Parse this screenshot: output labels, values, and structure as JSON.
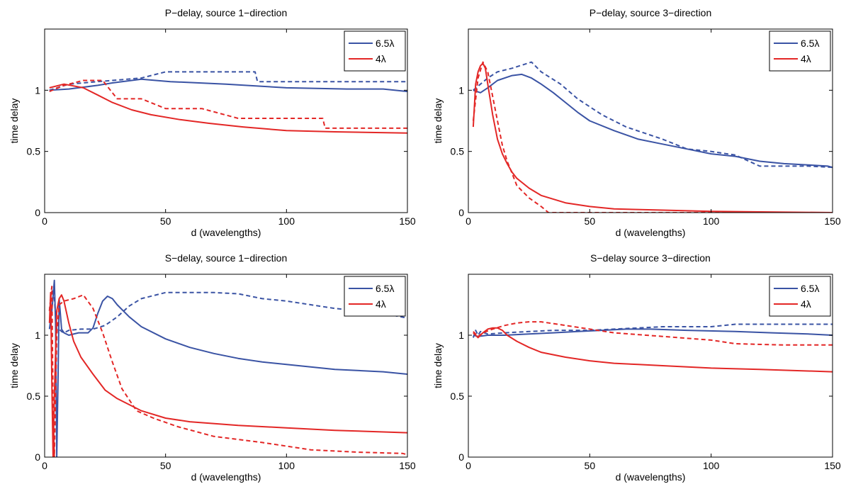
{
  "chart_data": [
    {
      "type": "line",
      "title": "P−delay, source 1−direction",
      "xlabel": "d (wavelengths)",
      "ylabel": "time delay",
      "xlim": [
        0,
        150
      ],
      "ylim": [
        0,
        1.5
      ],
      "xticks": [
        "0",
        "50",
        "100",
        "150"
      ],
      "yticks": [
        "0",
        "0.5",
        "1"
      ],
      "legend": {
        "position": "top-right",
        "entries": [
          "6.5λ",
          "4λ"
        ]
      },
      "series": [
        {
          "name": "6.5λ",
          "color": "#3a53a4",
          "style": "solid",
          "x": [
            2,
            10,
            22,
            28,
            40,
            52,
            75,
            100,
            125,
            140,
            150
          ],
          "y": [
            1.0,
            1.01,
            1.04,
            1.06,
            1.09,
            1.07,
            1.05,
            1.02,
            1.01,
            1.01,
            0.99
          ]
        },
        {
          "name": "6.5λ",
          "color": "#3a53a4",
          "style": "dashed",
          "x": [
            2,
            10,
            22,
            40,
            50,
            70,
            87,
            88,
            100,
            130,
            150
          ],
          "y": [
            1.0,
            1.05,
            1.07,
            1.1,
            1.15,
            1.15,
            1.15,
            1.07,
            1.07,
            1.07,
            1.07
          ]
        },
        {
          "name": "4λ",
          "color": "#e32726",
          "style": "solid",
          "x": [
            2,
            8,
            16,
            22,
            28,
            36,
            44,
            56,
            68,
            82,
            100,
            120,
            150
          ],
          "y": [
            1.02,
            1.05,
            1.02,
            0.96,
            0.9,
            0.84,
            0.8,
            0.76,
            0.73,
            0.7,
            0.67,
            0.66,
            0.65
          ]
        },
        {
          "name": "4λ",
          "color": "#e32726",
          "style": "dashed",
          "x": [
            2,
            8,
            16,
            24,
            30,
            40,
            50,
            65,
            80,
            100,
            115,
            116,
            150
          ],
          "y": [
            0.99,
            1.04,
            1.08,
            1.08,
            0.93,
            0.93,
            0.85,
            0.85,
            0.77,
            0.77,
            0.77,
            0.69,
            0.69
          ]
        }
      ]
    },
    {
      "type": "line",
      "title": "P−delay, source 3−direction",
      "xlabel": "d (wavelengths)",
      "ylabel": "time delay",
      "xlim": [
        0,
        150
      ],
      "ylim": [
        0,
        1.5
      ],
      "xticks": [
        "0",
        "50",
        "100",
        "150"
      ],
      "yticks": [
        "0",
        "0.5",
        "1"
      ],
      "legend": {
        "position": "top-right",
        "entries": [
          "6.5λ",
          "4λ"
        ]
      },
      "series": [
        {
          "name": "6.5λ",
          "color": "#3a53a4",
          "style": "solid",
          "x": [
            2,
            5,
            8,
            12,
            18,
            22,
            26,
            30,
            35,
            40,
            45,
            50,
            60,
            70,
            80,
            90,
            100,
            110,
            120,
            130,
            140,
            148,
            150
          ],
          "y": [
            1.0,
            0.98,
            1.02,
            1.08,
            1.12,
            1.13,
            1.1,
            1.05,
            0.98,
            0.9,
            0.82,
            0.75,
            0.67,
            0.6,
            0.56,
            0.52,
            0.48,
            0.46,
            0.42,
            0.4,
            0.39,
            0.38,
            0.37
          ]
        },
        {
          "name": "6.5λ",
          "color": "#3a53a4",
          "style": "dashed",
          "x": [
            2,
            5,
            8,
            12,
            18,
            26,
            30,
            38,
            45,
            55,
            65,
            80,
            90,
            100,
            110,
            120,
            130,
            140,
            150
          ],
          "y": [
            1.0,
            1.05,
            1.1,
            1.15,
            1.18,
            1.23,
            1.15,
            1.05,
            0.93,
            0.8,
            0.7,
            0.6,
            0.52,
            0.5,
            0.47,
            0.38,
            0.38,
            0.38,
            0.37
          ]
        },
        {
          "name": "4λ",
          "color": "#e32726",
          "style": "solid",
          "x": [
            2,
            3,
            4,
            5,
            6,
            7,
            8,
            10,
            12,
            14,
            16,
            18,
            20,
            25,
            30,
            40,
            50,
            60,
            80,
            100,
            150
          ],
          "y": [
            0.7,
            1.05,
            1.15,
            1.2,
            1.22,
            1.18,
            1.05,
            0.8,
            0.6,
            0.48,
            0.4,
            0.33,
            0.28,
            0.2,
            0.14,
            0.08,
            0.05,
            0.03,
            0.02,
            0.01,
            0.0
          ]
        },
        {
          "name": "4λ",
          "color": "#e32726",
          "style": "dashed",
          "x": [
            2,
            4,
            6,
            8,
            10,
            12,
            14,
            16,
            18,
            20,
            25,
            30,
            33,
            40,
            60,
            100,
            150
          ],
          "y": [
            0.75,
            1.1,
            1.23,
            1.15,
            0.95,
            0.75,
            0.55,
            0.42,
            0.32,
            0.22,
            0.12,
            0.05,
            0.0,
            0.0,
            0.0,
            0.0,
            0.0
          ]
        }
      ]
    },
    {
      "type": "line",
      "title": "S−delay, source 1−direction",
      "xlabel": "d (wavelengths)",
      "ylabel": "time delay",
      "xlim": [
        0,
        150
      ],
      "ylim": [
        0,
        1.5
      ],
      "xticks": [
        "0",
        "50",
        "100",
        "150"
      ],
      "yticks": [
        "0",
        "0.5",
        "1"
      ],
      "legend": {
        "position": "top-right",
        "entries": [
          "6.5λ",
          "4λ"
        ]
      },
      "series": [
        {
          "name": "6.5λ",
          "color": "#3a53a4",
          "style": "solid",
          "x": [
            2,
            3,
            4,
            4.5,
            5,
            5.5,
            6,
            7,
            8,
            10,
            14,
            18,
            20,
            22,
            24,
            26,
            28,
            30,
            35,
            40,
            50,
            60,
            70,
            80,
            90,
            100,
            110,
            120,
            130,
            140,
            150
          ],
          "y": [
            1.05,
            1.2,
            1.45,
            1.1,
            0.0,
            0.6,
            1.3,
            1.05,
            1.02,
            1.0,
            1.02,
            1.02,
            1.06,
            1.18,
            1.28,
            1.32,
            1.3,
            1.25,
            1.15,
            1.07,
            0.97,
            0.9,
            0.85,
            0.81,
            0.78,
            0.76,
            0.74,
            0.72,
            0.71,
            0.7,
            0.68
          ]
        },
        {
          "name": "6.5λ",
          "color": "#3a53a4",
          "style": "dashed",
          "x": [
            2,
            3,
            4,
            5,
            6,
            7,
            8,
            10,
            15,
            20,
            25,
            30,
            35,
            40,
            50,
            60,
            70,
            80,
            90,
            100,
            120,
            140,
            150
          ],
          "y": [
            1.2,
            1.4,
            1.3,
            1.05,
            1.05,
            1.03,
            1.02,
            1.04,
            1.05,
            1.05,
            1.08,
            1.15,
            1.24,
            1.3,
            1.35,
            1.35,
            1.35,
            1.34,
            1.3,
            1.28,
            1.22,
            1.18,
            1.14
          ]
        },
        {
          "name": "4λ",
          "color": "#e32726",
          "style": "solid",
          "x": [
            2,
            2.5,
            3,
            3.5,
            4,
            5,
            6,
            7,
            8,
            10,
            12,
            15,
            20,
            25,
            30,
            40,
            50,
            60,
            80,
            100,
            120,
            150
          ],
          "y": [
            1.1,
            1.35,
            0.6,
            0.0,
            0.5,
            1.2,
            1.3,
            1.33,
            1.28,
            1.1,
            0.95,
            0.82,
            0.68,
            0.55,
            0.48,
            0.38,
            0.32,
            0.29,
            0.26,
            0.24,
            0.22,
            0.2
          ]
        },
        {
          "name": "4λ",
          "color": "#e32726",
          "style": "dashed",
          "x": [
            2,
            3,
            3.5,
            4,
            5,
            6,
            8,
            12,
            16,
            20,
            24,
            28,
            32,
            38,
            45,
            55,
            70,
            90,
            110,
            130,
            148,
            150
          ],
          "y": [
            1.2,
            1.4,
            0.4,
            0.0,
            1.0,
            1.25,
            1.28,
            1.3,
            1.33,
            1.22,
            1.02,
            0.78,
            0.56,
            0.38,
            0.32,
            0.25,
            0.17,
            0.12,
            0.06,
            0.04,
            0.03,
            0.02
          ]
        }
      ]
    },
    {
      "type": "line",
      "title": "S−delay source 3−direction",
      "xlabel": "d (wavelengths)",
      "ylabel": "time delay",
      "xlim": [
        0,
        150
      ],
      "ylim": [
        0,
        1.5
      ],
      "xticks": [
        "0",
        "50",
        "100",
        "150"
      ],
      "yticks": [
        "0",
        "0.5",
        "1"
      ],
      "legend": {
        "position": "top-right",
        "entries": [
          "6.5λ",
          "4λ"
        ]
      },
      "series": [
        {
          "name": "6.5λ",
          "color": "#3a53a4",
          "style": "solid",
          "x": [
            2,
            4,
            8,
            15,
            25,
            35,
            45,
            55,
            65,
            75,
            90,
            110,
            125,
            140,
            150
          ],
          "y": [
            1.0,
            0.99,
            1.0,
            1.0,
            1.01,
            1.02,
            1.03,
            1.04,
            1.05,
            1.05,
            1.04,
            1.03,
            1.02,
            1.01,
            1.0
          ]
        },
        {
          "name": "6.5λ",
          "color": "#3a53a4",
          "style": "dashed",
          "x": [
            2,
            3,
            4,
            5,
            8,
            15,
            25,
            35,
            50,
            60,
            80,
            100,
            110,
            130,
            150
          ],
          "y": [
            0.98,
            1.04,
            1.0,
            1.03,
            1.01,
            1.02,
            1.03,
            1.04,
            1.04,
            1.05,
            1.07,
            1.07,
            1.09,
            1.09,
            1.09
          ]
        },
        {
          "name": "4λ",
          "color": "#e32726",
          "style": "solid",
          "x": [
            2,
            4,
            6,
            8,
            10,
            12,
            14,
            16,
            20,
            25,
            30,
            40,
            50,
            60,
            70,
            80,
            100,
            120,
            150
          ],
          "y": [
            1.02,
            0.98,
            1.02,
            1.05,
            1.06,
            1.06,
            1.04,
            1.0,
            0.95,
            0.9,
            0.86,
            0.82,
            0.79,
            0.77,
            0.76,
            0.75,
            0.73,
            0.72,
            0.7
          ]
        },
        {
          "name": "4λ",
          "color": "#e32726",
          "style": "dashed",
          "x": [
            2,
            4,
            6,
            10,
            15,
            20,
            25,
            30,
            40,
            50,
            60,
            80,
            100,
            110,
            130,
            150
          ],
          "y": [
            1.03,
            0.99,
            1.02,
            1.05,
            1.08,
            1.1,
            1.11,
            1.11,
            1.08,
            1.05,
            1.02,
            0.99,
            0.96,
            0.93,
            0.92,
            0.92
          ]
        }
      ]
    }
  ]
}
